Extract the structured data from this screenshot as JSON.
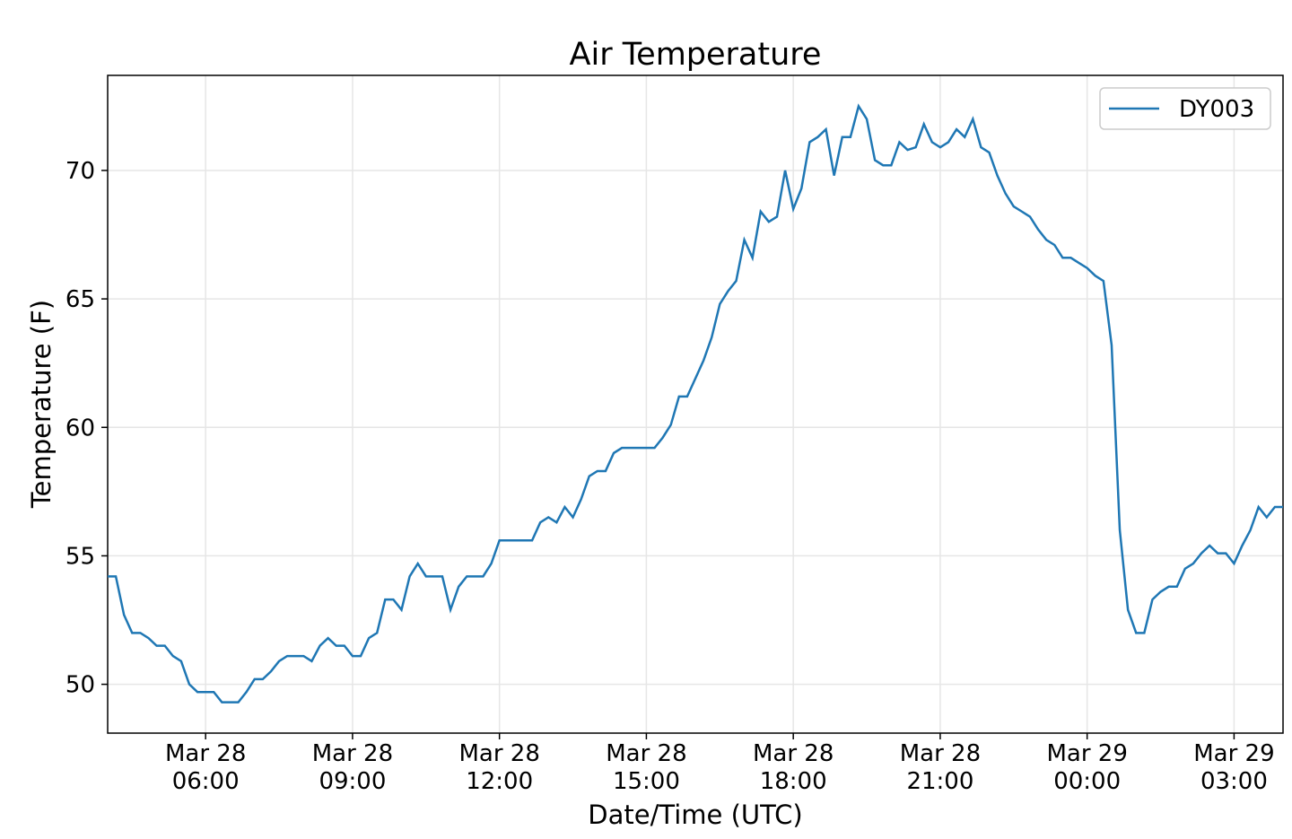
{
  "chart_data": {
    "type": "line",
    "title": "Air Temperature",
    "xlabel": "Date/Time (UTC)",
    "ylabel": "Temperature (F)",
    "x": [
      "Mar 28 04:00",
      "Mar 28 04:10",
      "Mar 28 04:20",
      "Mar 28 04:30",
      "Mar 28 04:40",
      "Mar 28 04:50",
      "Mar 28 05:00",
      "Mar 28 05:10",
      "Mar 28 05:20",
      "Mar 28 05:30",
      "Mar 28 05:40",
      "Mar 28 05:50",
      "Mar 28 06:00",
      "Mar 28 06:10",
      "Mar 28 06:20",
      "Mar 28 06:30",
      "Mar 28 06:40",
      "Mar 28 06:50",
      "Mar 28 07:00",
      "Mar 28 07:10",
      "Mar 28 07:20",
      "Mar 28 07:30",
      "Mar 28 07:40",
      "Mar 28 07:50",
      "Mar 28 08:00",
      "Mar 28 08:10",
      "Mar 28 08:20",
      "Mar 28 08:30",
      "Mar 28 08:40",
      "Mar 28 08:50",
      "Mar 28 09:00",
      "Mar 28 09:10",
      "Mar 28 09:20",
      "Mar 28 09:30",
      "Mar 28 09:40",
      "Mar 28 09:50",
      "Mar 28 10:00",
      "Mar 28 10:10",
      "Mar 28 10:20",
      "Mar 28 10:30",
      "Mar 28 10:40",
      "Mar 28 10:50",
      "Mar 28 11:00",
      "Mar 28 11:10",
      "Mar 28 11:20",
      "Mar 28 11:30",
      "Mar 28 11:40",
      "Mar 28 11:50",
      "Mar 28 12:00",
      "Mar 28 12:10",
      "Mar 28 12:20",
      "Mar 28 12:30",
      "Mar 28 12:40",
      "Mar 28 12:50",
      "Mar 28 13:00",
      "Mar 28 13:10",
      "Mar 28 13:20",
      "Mar 28 13:30",
      "Mar 28 13:40",
      "Mar 28 13:50",
      "Mar 28 14:00",
      "Mar 28 14:10",
      "Mar 28 14:20",
      "Mar 28 14:30",
      "Mar 28 14:40",
      "Mar 28 14:50",
      "Mar 28 15:00",
      "Mar 28 15:10",
      "Mar 28 15:20",
      "Mar 28 15:30",
      "Mar 28 15:40",
      "Mar 28 15:50",
      "Mar 28 16:00",
      "Mar 28 16:10",
      "Mar 28 16:20",
      "Mar 28 16:30",
      "Mar 28 16:40",
      "Mar 28 16:50",
      "Mar 28 17:00",
      "Mar 28 17:10",
      "Mar 28 17:20",
      "Mar 28 17:30",
      "Mar 28 17:40",
      "Mar 28 17:50",
      "Mar 28 18:00",
      "Mar 28 18:10",
      "Mar 28 18:20",
      "Mar 28 18:30",
      "Mar 28 18:40",
      "Mar 28 18:50",
      "Mar 28 19:00",
      "Mar 28 19:10",
      "Mar 28 19:20",
      "Mar 28 19:30",
      "Mar 28 19:40",
      "Mar 28 19:50",
      "Mar 28 20:00",
      "Mar 28 20:10",
      "Mar 28 20:20",
      "Mar 28 20:30",
      "Mar 28 20:40",
      "Mar 28 20:50",
      "Mar 28 21:00",
      "Mar 28 21:10",
      "Mar 28 21:20",
      "Mar 28 21:30",
      "Mar 28 21:40",
      "Mar 28 21:50",
      "Mar 28 22:00",
      "Mar 28 22:10",
      "Mar 28 22:20",
      "Mar 28 22:30",
      "Mar 28 22:40",
      "Mar 28 22:50",
      "Mar 28 23:00",
      "Mar 28 23:10",
      "Mar 28 23:20",
      "Mar 28 23:30",
      "Mar 28 23:40",
      "Mar 28 23:50",
      "Mar 29 00:00",
      "Mar 29 00:10",
      "Mar 29 00:20",
      "Mar 29 00:30",
      "Mar 29 00:40",
      "Mar 29 00:50",
      "Mar 29 01:00",
      "Mar 29 01:10",
      "Mar 29 01:20",
      "Mar 29 01:30",
      "Mar 29 01:40",
      "Mar 29 01:50",
      "Mar 29 02:00",
      "Mar 29 02:10",
      "Mar 29 02:20",
      "Mar 29 02:30",
      "Mar 29 02:40",
      "Mar 29 02:50",
      "Mar 29 03:00",
      "Mar 29 03:10",
      "Mar 29 03:20",
      "Mar 29 03:30",
      "Mar 29 03:40",
      "Mar 29 03:50",
      "Mar 29 04:00"
    ],
    "series": [
      {
        "name": "DY003",
        "color": "#1f77b4",
        "values": [
          54.2,
          54.2,
          52.7,
          52.0,
          52.0,
          51.8,
          51.5,
          51.5,
          51.1,
          50.9,
          50.0,
          49.7,
          49.7,
          49.7,
          49.3,
          49.3,
          49.3,
          49.7,
          50.2,
          50.2,
          50.5,
          50.9,
          51.1,
          51.1,
          51.1,
          50.9,
          51.5,
          51.8,
          51.5,
          51.5,
          51.1,
          51.1,
          51.8,
          52.0,
          53.3,
          53.3,
          52.9,
          54.2,
          54.7,
          54.2,
          54.2,
          54.2,
          52.9,
          53.8,
          54.2,
          54.2,
          54.2,
          54.7,
          55.6,
          55.6,
          55.6,
          55.6,
          55.6,
          56.3,
          56.5,
          56.3,
          56.9,
          56.5,
          57.2,
          58.1,
          58.3,
          58.3,
          59.0,
          59.2,
          59.2,
          59.2,
          59.2,
          59.2,
          59.6,
          60.1,
          61.2,
          61.2,
          61.9,
          62.6,
          63.5,
          64.8,
          65.3,
          65.7,
          67.3,
          66.6,
          68.4,
          68.0,
          68.2,
          70.0,
          68.5,
          69.3,
          71.1,
          71.3,
          71.6,
          69.8,
          71.3,
          71.3,
          72.5,
          72.0,
          70.4,
          70.2,
          70.2,
          71.1,
          70.8,
          70.9,
          71.8,
          71.1,
          70.9,
          71.1,
          71.6,
          71.3,
          72.0,
          70.9,
          70.7,
          69.8,
          69.1,
          68.6,
          68.4,
          68.2,
          67.7,
          67.3,
          67.1,
          66.6,
          66.6,
          66.4,
          66.2,
          65.9,
          65.7,
          63.2,
          56.0,
          52.9,
          52.0,
          52.0,
          53.3,
          53.6,
          53.8,
          53.8,
          54.5,
          54.7,
          55.1,
          55.4,
          55.1,
          55.1,
          54.7,
          55.4,
          56.0,
          56.9,
          56.5,
          56.9,
          56.9
        ]
      }
    ],
    "xlim": [
      "Mar 28 04:00",
      "Mar 29 04:00"
    ],
    "xticks": [
      {
        "value": "Mar 28 06:00",
        "label": "Mar 28\n06:00"
      },
      {
        "value": "Mar 28 09:00",
        "label": "Mar 28\n09:00"
      },
      {
        "value": "Mar 28 12:00",
        "label": "Mar 28\n12:00"
      },
      {
        "value": "Mar 28 15:00",
        "label": "Mar 28\n15:00"
      },
      {
        "value": "Mar 28 18:00",
        "label": "Mar 28\n18:00"
      },
      {
        "value": "Mar 28 21:00",
        "label": "Mar 28\n21:00"
      },
      {
        "value": "Mar 29 00:00",
        "label": "Mar 29\n00:00"
      },
      {
        "value": "Mar 29 03:00",
        "label": "Mar 29\n03:00"
      }
    ],
    "ylim": [
      48.1,
      73.7
    ],
    "yticks": [
      50,
      55,
      60,
      65,
      70
    ],
    "grid": true,
    "legend": "upper right"
  }
}
